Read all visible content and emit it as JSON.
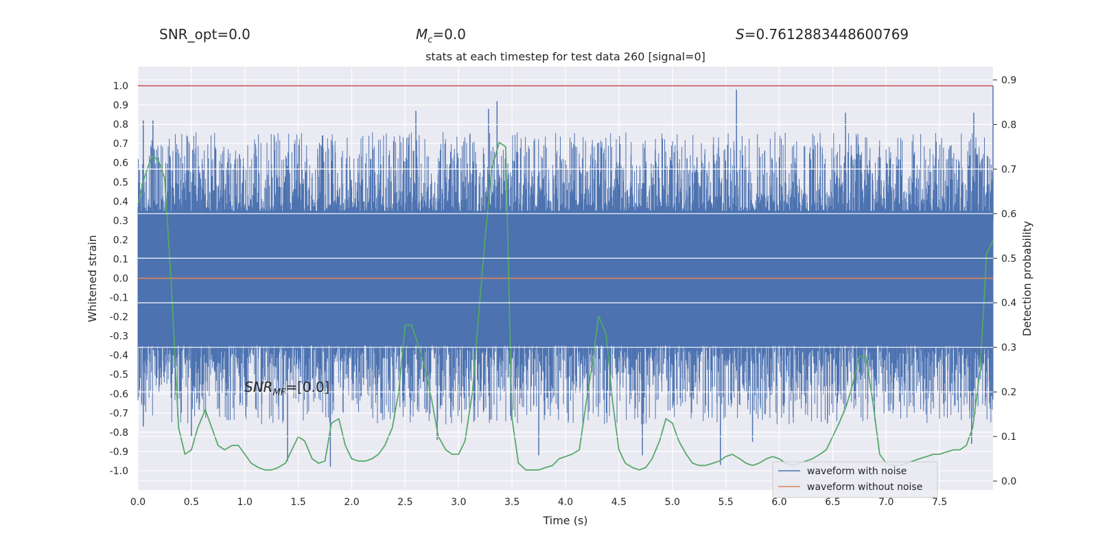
{
  "header": {
    "snr_opt": "SNR_opt=0.0",
    "mc_symbol": "M",
    "mc_sub": "c",
    "mc_value": "=0.0",
    "s_symbol": "S",
    "s_value": "=0.7612883448600769"
  },
  "chart_data": {
    "type": "line",
    "title": "stats at each timestep for test data 260 [signal=0]",
    "xlabel": "Time (s)",
    "ylabel": "Whitened strain",
    "y2label": "Detection probability",
    "xlim": [
      0.0,
      8.0
    ],
    "ylim": [
      -1.1,
      1.1
    ],
    "y2lim": [
      -0.02,
      0.93
    ],
    "x_ticks": [
      "0.0",
      "0.5",
      "1.0",
      "1.5",
      "2.0",
      "2.5",
      "3.0",
      "3.5",
      "4.0",
      "4.5",
      "5.0",
      "5.5",
      "6.0",
      "6.5",
      "7.0",
      "7.5"
    ],
    "y_ticks": [
      "1.0",
      "0.9",
      "0.8",
      "0.7",
      "0.6",
      "0.5",
      "0.4",
      "0.3",
      "0.2",
      "0.1",
      "0.0",
      "-0.1",
      "-0.2",
      "-0.3",
      "-0.4",
      "-0.5",
      "-0.6",
      "-0.7",
      "-0.8",
      "-0.9",
      "-1.0"
    ],
    "y2_ticks": [
      "0.9",
      "0.8",
      "0.7",
      "0.6",
      "0.5",
      "0.4",
      "0.3",
      "0.2",
      "0.1",
      "0.0"
    ],
    "annotation": {
      "base": "SNR",
      "sub": "MF",
      "value": "=[0.0]"
    },
    "threshold": {
      "y": 1.0,
      "color": "#c44e52"
    },
    "legend": {
      "placement": "bottom-right",
      "entries": [
        {
          "label": "waveform with noise",
          "color": "#4c72b0"
        },
        {
          "label": "waveform without noise",
          "color": "#dd8452"
        }
      ]
    },
    "series": [
      {
        "name": "waveform with noise",
        "color": "#4c72b0",
        "style": "dense noise band",
        "core_band": [
          -0.35,
          0.35
        ],
        "upper_extremes": [
          [
            0.05,
            0.82
          ],
          [
            0.14,
            0.82
          ],
          [
            2.6,
            0.87
          ],
          [
            3.28,
            0.88
          ],
          [
            3.36,
            0.92
          ],
          [
            5.6,
            0.98
          ],
          [
            6.62,
            0.86
          ],
          [
            7.82,
            0.86
          ],
          [
            8.0,
            1.0
          ]
        ],
        "lower_extremes": [
          [
            0.05,
            -0.77
          ],
          [
            0.5,
            -0.82
          ],
          [
            1.4,
            -0.95
          ],
          [
            1.8,
            -0.98
          ],
          [
            2.8,
            -0.84
          ],
          [
            3.75,
            -0.92
          ],
          [
            4.72,
            -0.92
          ],
          [
            5.45,
            -0.97
          ],
          [
            5.75,
            -0.85
          ],
          [
            7.8,
            -0.86
          ]
        ]
      },
      {
        "name": "waveform without noise",
        "color": "#dd8452",
        "x": [
          0.0,
          8.0
        ],
        "y": [
          0.0,
          0.0
        ]
      },
      {
        "name": "detection probability",
        "color": "#55a868",
        "axis": "right",
        "x": [
          0.0,
          0.06,
          0.13,
          0.19,
          0.25,
          0.31,
          0.38,
          0.44,
          0.5,
          0.56,
          0.63,
          0.69,
          0.75,
          0.81,
          0.88,
          0.94,
          1.0,
          1.06,
          1.13,
          1.19,
          1.25,
          1.31,
          1.38,
          1.44,
          1.5,
          1.56,
          1.63,
          1.69,
          1.75,
          1.81,
          1.88,
          1.94,
          2.0,
          2.06,
          2.13,
          2.19,
          2.25,
          2.31,
          2.38,
          2.44,
          2.5,
          2.56,
          2.63,
          2.69,
          2.75,
          2.81,
          2.88,
          2.94,
          3.0,
          3.06,
          3.13,
          3.19,
          3.25,
          3.31,
          3.38,
          3.44,
          3.5,
          3.56,
          3.63,
          3.69,
          3.75,
          3.81,
          3.88,
          3.94,
          4.0,
          4.06,
          4.13,
          4.19,
          4.25,
          4.31,
          4.38,
          4.44,
          4.5,
          4.56,
          4.63,
          4.69,
          4.75,
          4.81,
          4.88,
          4.94,
          5.0,
          5.06,
          5.13,
          5.19,
          5.25,
          5.31,
          5.38,
          5.44,
          5.5,
          5.56,
          5.63,
          5.69,
          5.75,
          5.81,
          5.88,
          5.94,
          6.0,
          6.06,
          6.13,
          6.19,
          6.25,
          6.31,
          6.38,
          6.44,
          6.5,
          6.56,
          6.63,
          6.69,
          6.75,
          6.81,
          6.88,
          6.94,
          7.0,
          7.06,
          7.13,
          7.19,
          7.25,
          7.31,
          7.38,
          7.44,
          7.5,
          7.56,
          7.63,
          7.69,
          7.75,
          7.81,
          7.88,
          7.94,
          8.0
        ],
        "y": [
          0.62,
          0.68,
          0.73,
          0.72,
          0.68,
          0.45,
          0.12,
          0.06,
          0.07,
          0.12,
          0.16,
          0.12,
          0.08,
          0.07,
          0.08,
          0.08,
          0.06,
          0.04,
          0.03,
          0.025,
          0.025,
          0.03,
          0.04,
          0.07,
          0.1,
          0.09,
          0.05,
          0.04,
          0.045,
          0.13,
          0.14,
          0.08,
          0.05,
          0.045,
          0.045,
          0.05,
          0.06,
          0.08,
          0.12,
          0.2,
          0.35,
          0.35,
          0.3,
          0.25,
          0.18,
          0.1,
          0.07,
          0.06,
          0.06,
          0.09,
          0.2,
          0.38,
          0.55,
          0.7,
          0.76,
          0.75,
          0.14,
          0.04,
          0.025,
          0.025,
          0.025,
          0.03,
          0.035,
          0.05,
          0.055,
          0.06,
          0.07,
          0.17,
          0.26,
          0.37,
          0.33,
          0.18,
          0.07,
          0.04,
          0.03,
          0.025,
          0.03,
          0.05,
          0.09,
          0.14,
          0.13,
          0.09,
          0.06,
          0.04,
          0.035,
          0.035,
          0.04,
          0.045,
          0.055,
          0.06,
          0.05,
          0.04,
          0.035,
          0.04,
          0.05,
          0.055,
          0.05,
          0.04,
          0.035,
          0.04,
          0.045,
          0.05,
          0.06,
          0.07,
          0.1,
          0.13,
          0.17,
          0.22,
          0.28,
          0.28,
          0.17,
          0.06,
          0.04,
          0.035,
          0.035,
          0.04,
          0.045,
          0.05,
          0.055,
          0.06,
          0.06,
          0.065,
          0.07,
          0.07,
          0.08,
          0.12,
          0.25,
          0.51,
          0.54
        ]
      }
    ]
  }
}
